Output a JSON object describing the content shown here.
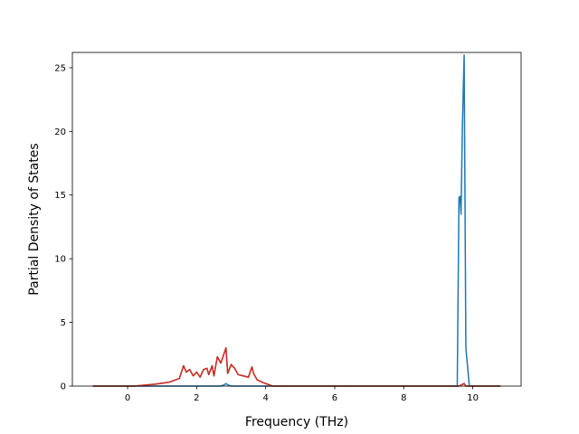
{
  "chart_data": {
    "type": "line",
    "title": "",
    "xlabel": "Frequency (THz)",
    "ylabel": "Partial Density of States",
    "xlim": [
      -1.6,
      11.4
    ],
    "ylim": [
      0,
      26.2
    ],
    "xticks": [
      0,
      2,
      4,
      6,
      8,
      10
    ],
    "yticks": [
      0,
      5,
      10,
      15,
      20,
      25
    ],
    "grid": false,
    "legend": null,
    "series": [
      {
        "color": "#1f77b4",
        "x": [
          -1.0,
          2.7,
          2.8,
          2.85,
          2.9,
          3.0,
          9.55,
          9.6,
          9.63,
          9.66,
          9.7,
          9.75,
          9.8,
          9.9,
          10.8
        ],
        "y": [
          0,
          0,
          0.1,
          0.2,
          0.1,
          0,
          0,
          14.8,
          14.9,
          13.5,
          20.5,
          26.0,
          3.0,
          0,
          0
        ]
      },
      {
        "color": "#2ca02c",
        "x": [
          -1.0,
          0.2,
          0.8,
          1.2,
          1.5,
          1.62,
          1.7,
          1.8,
          1.9,
          2.0,
          2.1,
          2.2,
          2.3,
          2.35,
          2.45,
          2.5,
          2.6,
          2.7,
          2.8,
          2.85,
          2.9,
          3.0,
          3.1,
          3.2,
          3.35,
          3.5,
          3.6,
          3.65,
          3.75,
          3.9,
          4.2,
          9.6,
          9.75,
          9.8,
          10.8
        ],
        "y": [
          0,
          0,
          0.15,
          0.3,
          0.6,
          1.6,
          1.1,
          1.3,
          0.8,
          1.1,
          0.7,
          1.3,
          1.4,
          0.9,
          1.6,
          0.8,
          2.3,
          1.8,
          2.6,
          3.0,
          1.0,
          1.7,
          1.4,
          0.9,
          0.8,
          0.7,
          1.5,
          1.0,
          0.5,
          0.3,
          0,
          0,
          0.2,
          0,
          0
        ]
      },
      {
        "color": "#d62728",
        "x": [
          -1.0,
          0.2,
          0.8,
          1.2,
          1.5,
          1.62,
          1.7,
          1.8,
          1.9,
          2.0,
          2.1,
          2.2,
          2.3,
          2.35,
          2.45,
          2.5,
          2.6,
          2.7,
          2.8,
          2.85,
          2.9,
          3.0,
          3.1,
          3.2,
          3.35,
          3.5,
          3.6,
          3.65,
          3.75,
          3.9,
          4.2,
          9.6,
          9.75,
          9.8,
          10.8
        ],
        "y": [
          0,
          0,
          0.15,
          0.3,
          0.6,
          1.6,
          1.1,
          1.3,
          0.8,
          1.1,
          0.7,
          1.3,
          1.4,
          0.9,
          1.6,
          0.8,
          2.3,
          1.8,
          2.6,
          3.0,
          1.0,
          1.7,
          1.4,
          0.9,
          0.8,
          0.7,
          1.5,
          1.0,
          0.5,
          0.3,
          0,
          0,
          0.2,
          0,
          0
        ]
      }
    ]
  }
}
